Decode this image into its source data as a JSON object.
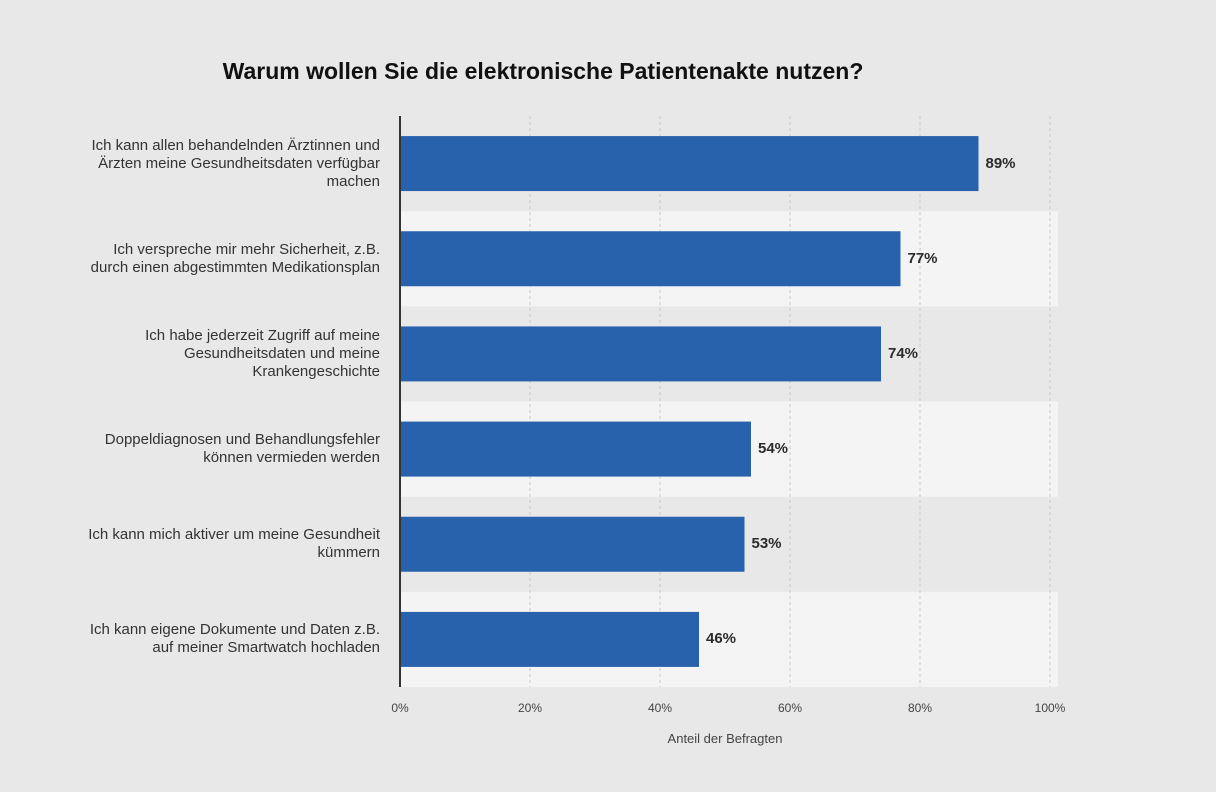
{
  "chart_data": {
    "type": "bar",
    "orientation": "horizontal",
    "title": "Warum wollen Sie die elektronische Patientenakte nutzen?",
    "xlabel": "Anteil der Befragten",
    "ylabel": "",
    "xlim": [
      0,
      100
    ],
    "x_ticks": [
      "0%",
      "20%",
      "40%",
      "60%",
      "80%",
      "100%"
    ],
    "categories": [
      [
        "Ich kann allen behandelnden Ärztinnen und",
        "Ärzten meine Gesundheitsdaten verfügbar",
        "machen"
      ],
      [
        "Ich verspreche mir mehr Sicherheit, z.B.",
        "durch einen abgestimmten Medikationsplan"
      ],
      [
        "Ich habe jederzeit Zugriff auf meine",
        "Gesundheitsdaten und meine",
        "Krankengeschichte"
      ],
      [
        "Doppeldiagnosen und Behandlungsfehler",
        "können vermieden werden"
      ],
      [
        "Ich kann mich aktiver um meine Gesundheit",
        "kümmern"
      ],
      [
        "Ich kann eigene Dokumente und Daten z.B.",
        "auf meiner Smartwatch hochladen"
      ]
    ],
    "values": [
      89,
      77,
      74,
      54,
      53,
      46
    ],
    "value_labels": [
      "89%",
      "77%",
      "74%",
      "54%",
      "53%",
      "46%"
    ],
    "grid": true,
    "colors": {
      "bar": "#2862ad",
      "background": "#e8e8e8",
      "band_light": "#f4f4f4",
      "gridline": "#c8c8c8",
      "axis": "#333333"
    }
  }
}
